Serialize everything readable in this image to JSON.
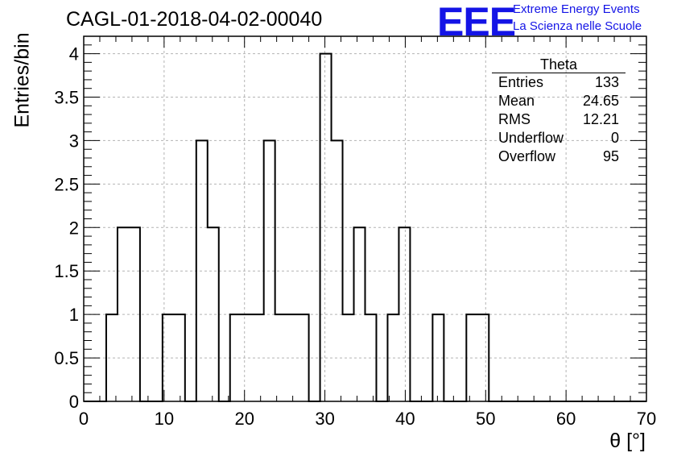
{
  "header": {
    "title": "CAGL-01-2018-04-02-00040",
    "logo_text": "EEE",
    "logo_line1": "Extreme Energy Events",
    "logo_line2": "La Scienza nelle Scuole"
  },
  "stats": {
    "name": "Theta",
    "rows": [
      {
        "label": "Entries",
        "value": "133"
      },
      {
        "label": "Mean",
        "value": "24.65"
      },
      {
        "label": "RMS",
        "value": "12.21"
      },
      {
        "label": "Underflow",
        "value": "0"
      },
      {
        "label": "Overflow",
        "value": "95"
      }
    ]
  },
  "colors": {
    "logo": "#1414e6",
    "line": "#000000",
    "grid": "#b4b4b4"
  },
  "chart_data": {
    "type": "bar",
    "style": "step-histogram",
    "xlabel": "θ [°]",
    "ylabel": "Entries/bin",
    "xlim": [
      0,
      70
    ],
    "ylim": [
      0,
      4.2
    ],
    "grid": true,
    "x_ticks": [
      "0",
      "10",
      "20",
      "30",
      "40",
      "50",
      "60",
      "70"
    ],
    "y_ticks": [
      "0",
      "0.5",
      "1",
      "1.5",
      "2",
      "2.5",
      "3",
      "3.5",
      "4"
    ],
    "bin_edges": [
      0,
      1.4,
      2.8,
      4.2,
      5.6,
      7.0,
      8.4,
      9.8,
      11.2,
      12.6,
      14.0,
      15.4,
      16.8,
      18.2,
      19.6,
      21.0,
      22.4,
      23.8,
      25.2,
      26.6,
      28.0,
      29.4,
      30.8,
      32.2,
      33.6,
      35.0,
      36.4,
      37.8,
      39.2,
      40.6,
      42.0,
      43.4,
      44.8,
      46.2,
      47.6,
      49.0,
      50.4,
      51.8,
      53.2,
      54.6,
      56.0,
      57.4,
      58.8,
      60.2,
      61.6,
      63.0,
      64.4,
      65.8,
      67.2,
      68.6,
      70.0
    ],
    "values": [
      0,
      0,
      1,
      2,
      2,
      0,
      0,
      1,
      1,
      0,
      3,
      2,
      0,
      1,
      1,
      1,
      3,
      1,
      1,
      1,
      0,
      4,
      3,
      1,
      2,
      1,
      0,
      1,
      2,
      0,
      0,
      1,
      0,
      0,
      1,
      1,
      0,
      0,
      0,
      0,
      0,
      0,
      0,
      0,
      0,
      0,
      0,
      0,
      0,
      0
    ]
  }
}
